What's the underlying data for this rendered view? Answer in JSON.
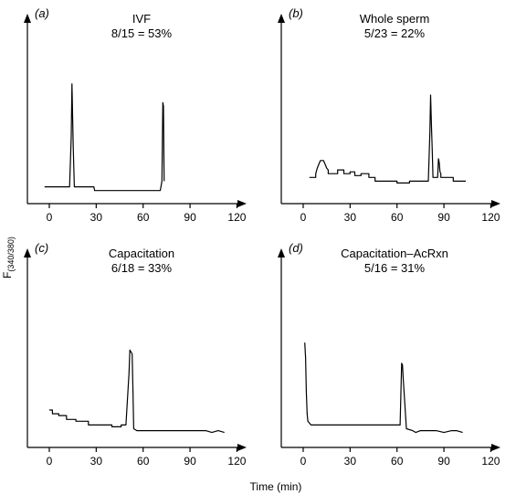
{
  "figure": {
    "ylabel_main": "F",
    "ylabel_sub": "(340/380)",
    "xlabel": "Time (min)"
  },
  "chart_data": [
    {
      "type": "line",
      "panel": "a",
      "panel_label_text": "(a)",
      "title_line1": "IVF",
      "title_line2": "8/15 = 53%",
      "xlim": [
        -7,
        125
      ],
      "x_ticks": [
        0,
        30,
        60,
        90,
        120
      ],
      "x_tick_labels": [
        "0",
        "30",
        "60",
        "90",
        "120"
      ],
      "series": [
        {
          "x": [
            -3,
            13,
            14,
            14.5,
            15.3,
            16,
            28.5,
            29,
            71,
            72,
            72.6,
            73,
            73.4
          ],
          "y": [
            0.09,
            0.09,
            0.36,
            0.64,
            0.3,
            0.09,
            0.09,
            0.07,
            0.07,
            0.12,
            0.54,
            0.52,
            0.12
          ]
        }
      ]
    },
    {
      "type": "line",
      "panel": "b",
      "panel_label_text": "(b)",
      "title_line1": "Whole sperm",
      "title_line2": "5/23 = 22%",
      "xlim": [
        -7,
        125
      ],
      "x_ticks": [
        0,
        30,
        60,
        90,
        120
      ],
      "x_tick_labels": [
        "0",
        "30",
        "60",
        "90",
        "120"
      ],
      "series": [
        {
          "x": [
            4,
            8,
            8,
            9,
            10,
            11,
            13,
            14,
            15,
            16,
            16,
            22,
            22,
            26,
            26,
            30,
            30,
            33,
            33,
            37,
            37,
            42,
            42,
            46,
            46,
            60,
            60,
            68,
            68,
            80,
            80,
            81,
            81.5,
            82,
            82.5,
            83,
            85,
            86,
            86.5,
            87,
            87.5,
            88,
            88,
            96,
            96,
            104
          ],
          "y": [
            0.14,
            0.14,
            0.16,
            0.19,
            0.21,
            0.23,
            0.23,
            0.21,
            0.19,
            0.18,
            0.16,
            0.16,
            0.18,
            0.18,
            0.16,
            0.16,
            0.17,
            0.17,
            0.15,
            0.15,
            0.16,
            0.16,
            0.14,
            0.14,
            0.12,
            0.12,
            0.11,
            0.11,
            0.12,
            0.12,
            0.12,
            0.38,
            0.58,
            0.42,
            0.3,
            0.14,
            0.14,
            0.14,
            0.24,
            0.22,
            0.17,
            0.16,
            0.14,
            0.14,
            0.12,
            0.12
          ]
        }
      ]
    },
    {
      "type": "line",
      "panel": "c",
      "panel_label_text": "(c)",
      "title_line1": "Capacitation",
      "title_line2": "6/18 = 33%",
      "xlim": [
        -7,
        125
      ],
      "x_ticks": [
        0,
        30,
        60,
        90,
        120
      ],
      "x_tick_labels": [
        "0",
        "30",
        "60",
        "90",
        "120"
      ],
      "series": [
        {
          "x": [
            0,
            2,
            2,
            6,
            6,
            11,
            11,
            17,
            17,
            25,
            25,
            40,
            40,
            46,
            46,
            49,
            51,
            51.5,
            53,
            53.5,
            54,
            56,
            60,
            70,
            80,
            90,
            100,
            104,
            108,
            112
          ],
          "y": [
            0.2,
            0.2,
            0.18,
            0.18,
            0.17,
            0.17,
            0.15,
            0.15,
            0.14,
            0.14,
            0.12,
            0.12,
            0.11,
            0.11,
            0.12,
            0.12,
            0.4,
            0.52,
            0.5,
            0.3,
            0.1,
            0.09,
            0.09,
            0.09,
            0.09,
            0.09,
            0.09,
            0.08,
            0.09,
            0.08
          ]
        }
      ]
    },
    {
      "type": "line",
      "panel": "d",
      "panel_label_text": "(d)",
      "title_line1": "Capacitation–AcRxn",
      "title_line2": "5/16 = 31%",
      "xlim": [
        -7,
        125
      ],
      "x_ticks": [
        0,
        30,
        60,
        90,
        120
      ],
      "x_tick_labels": [
        "0",
        "30",
        "60",
        "90",
        "120"
      ],
      "series": [
        {
          "x": [
            1,
            1.5,
            2,
            2.5,
            3,
            5,
            62,
            63,
            63.5,
            64,
            64.5,
            66,
            70,
            72,
            75,
            80,
            85,
            90,
            95,
            98,
            102
          ],
          "y": [
            0.56,
            0.48,
            0.3,
            0.18,
            0.14,
            0.12,
            0.12,
            0.45,
            0.44,
            0.36,
            0.3,
            0.1,
            0.09,
            0.08,
            0.09,
            0.09,
            0.09,
            0.08,
            0.09,
            0.09,
            0.08
          ]
        }
      ]
    }
  ]
}
